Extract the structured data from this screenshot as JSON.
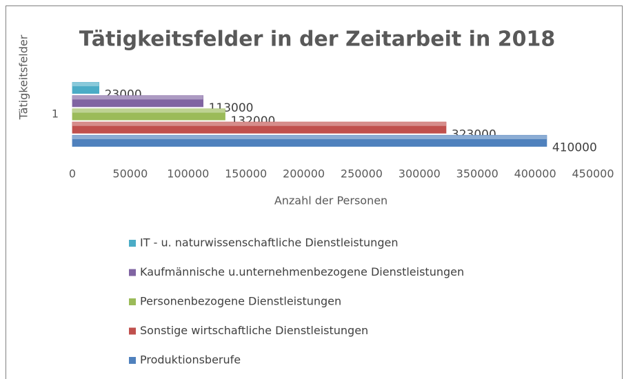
{
  "chart_data": {
    "type": "bar",
    "orientation": "horizontal",
    "title": "Tätigkeitsfelder in der Zeitarbeit in 2018",
    "xlabel": "Anzahl der Personen",
    "ylabel": "Tätigkeitsfelder",
    "categories": [
      "1"
    ],
    "series": [
      {
        "name": "IT - u. naturwissenschaftliche Dienstleistungen",
        "color": "#4bacc6",
        "values": [
          23000
        ]
      },
      {
        "name": "Kaufmännische u.unternehmenbezogene Dienstleistungen",
        "color": "#8064a2",
        "values": [
          113000
        ]
      },
      {
        "name": "Personenbezogene Dienstleistungen",
        "color": "#9bbb59",
        "values": [
          132000
        ]
      },
      {
        "name": "Sonstige wirtschaftliche Dienstleistungen",
        "color": "#c0504d",
        "values": [
          323000
        ]
      },
      {
        "name": "Produktionsberufe",
        "color": "#4f81bd",
        "values": [
          410000
        ]
      }
    ],
    "xlim": [
      0,
      450000
    ],
    "xticks": [
      0,
      50000,
      100000,
      150000,
      200000,
      250000,
      300000,
      350000,
      400000,
      450000
    ],
    "legend": "bottom"
  }
}
